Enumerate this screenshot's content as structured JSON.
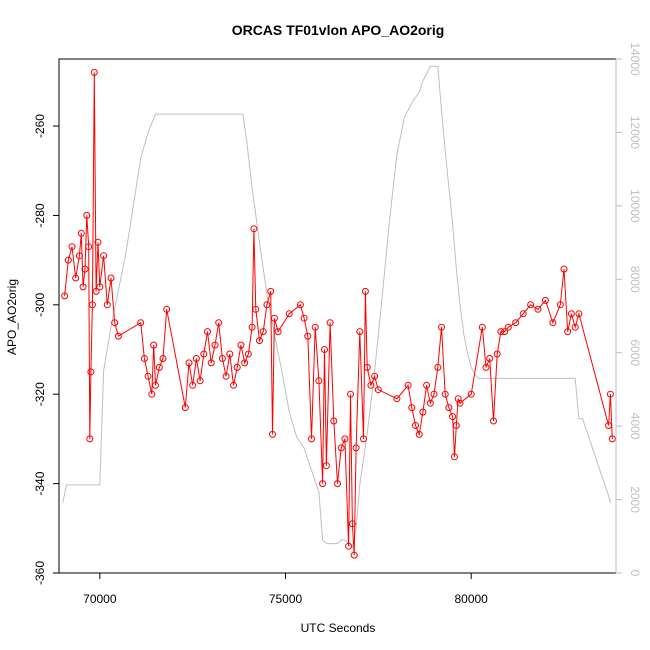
{
  "chart_data": {
    "type": "scatter",
    "title": "ORCAS TF01vlon APO_AO2orig",
    "xlabel": "UTC Seconds",
    "ylabel": "APO_AO2orig",
    "xlim": [
      68900,
      83900
    ],
    "ylim": [
      -360,
      -245
    ],
    "y2lim": [
      0,
      14000
    ],
    "x_ticks": [
      70000,
      75000,
      80000
    ],
    "x_tick_labels": [
      "70000",
      "75000",
      "80000"
    ],
    "y_ticks": [
      -360,
      -340,
      -320,
      -300,
      -280,
      -260
    ],
    "y_tick_labels": [
      "-360",
      "-340",
      "-320",
      "-300",
      "-280",
      "-260"
    ],
    "y2_ticks": [
      0,
      2000,
      4000,
      6000,
      8000,
      10000,
      12000,
      14000
    ],
    "y2_tick_labels": [
      "0",
      "2000",
      "4000",
      "6000",
      "8000",
      "10000",
      "12000",
      "14000"
    ],
    "colors": {
      "apo": "#ff0000",
      "altitude": "#bfbfbf"
    },
    "grid": false,
    "legend": "none",
    "series": [
      {
        "axis": "left",
        "style": "line+open-circles",
        "color": "#ff0000",
        "x": [
          69050,
          69150,
          69250,
          69350,
          69450,
          69500,
          69550,
          69600,
          69650,
          69700,
          69730,
          69760,
          69800,
          69850,
          69900,
          69950,
          70000,
          70100,
          70200,
          70300,
          70400,
          70500,
          71100,
          71200,
          71300,
          71400,
          71450,
          71500,
          71600,
          71700,
          71800,
          72300,
          72400,
          72500,
          72600,
          72700,
          72800,
          72900,
          73000,
          73100,
          73200,
          73300,
          73400,
          73500,
          73600,
          73700,
          73800,
          73900,
          74000,
          74100,
          74150,
          74200,
          74300,
          74400,
          74500,
          74600,
          74650,
          74700,
          74800,
          75100,
          75400,
          75500,
          75600,
          75700,
          75800,
          75900,
          76000,
          76050,
          76100,
          76200,
          76300,
          76400,
          76500,
          76600,
          76700,
          76750,
          76800,
          76850,
          76900,
          77000,
          77100,
          77150,
          77200,
          77300,
          77400,
          77500,
          78000,
          78300,
          78400,
          78500,
          78600,
          78700,
          78800,
          78900,
          79000,
          79100,
          79200,
          79300,
          79400,
          79500,
          79550,
          79600,
          79650,
          79700,
          80000,
          80300,
          80400,
          80500,
          80600,
          80700,
          80800,
          80900,
          81000,
          81200,
          81400,
          81600,
          81800,
          82000,
          82200,
          82400,
          82500,
          82600,
          82700,
          82800,
          82900,
          83700,
          83750,
          83800
        ],
        "y": [
          -298,
          -290,
          -287,
          -294,
          -289,
          -284,
          -296,
          -292,
          -280,
          -287,
          -330,
          -315,
          -300,
          -248,
          -297,
          -286,
          -296,
          -289,
          -300,
          -294,
          -304,
          -307,
          -304,
          -312,
          -316,
          -320,
          -309,
          -318,
          -314,
          -312,
          -301,
          -323,
          -313,
          -318,
          -312,
          -317,
          -311,
          -306,
          -313,
          -309,
          -304,
          -312,
          -316,
          -311,
          -318,
          -314,
          -309,
          -313,
          -311,
          -305,
          -283,
          -301,
          -308,
          -306,
          -300,
          -297,
          -329,
          -303,
          -306,
          -302,
          -300,
          -303,
          -307,
          -330,
          -305,
          -317,
          -340,
          -310,
          -336,
          -304,
          -326,
          -340,
          -332,
          -330,
          -354,
          -320,
          -349,
          -356,
          -332,
          -306,
          -330,
          -297,
          -314,
          -318,
          -316,
          -319,
          -321,
          -318,
          -323,
          -327,
          -329,
          -324,
          -318,
          -322,
          -320,
          -314,
          -305,
          -320,
          -323,
          -325,
          -334,
          -327,
          -321,
          -322,
          -320,
          -305,
          -314,
          -312,
          -326,
          -311,
          -306,
          -306,
          -305,
          -304,
          -302,
          -300,
          -301,
          -299,
          -304,
          -300,
          -292,
          -306,
          -302,
          -305,
          -302,
          -327,
          -320,
          -330
        ]
      },
      {
        "axis": "right",
        "style": "line",
        "color": "#bfbfbf",
        "x": [
          69000,
          69100,
          69200,
          69300,
          69400,
          69500,
          69600,
          69700,
          69800,
          69900,
          70000,
          70100,
          70300,
          70500,
          70700,
          70900,
          71100,
          71300,
          71500,
          72000,
          72500,
          73000,
          73500,
          73800,
          73850,
          73950,
          74100,
          74300,
          74500,
          74700,
          74900,
          75100,
          75300,
          75500,
          75700,
          75900,
          76000,
          76100,
          76200,
          76300,
          76400,
          76500,
          76600,
          76700,
          76800,
          76900,
          77000,
          77200,
          77400,
          77600,
          77800,
          78000,
          78200,
          78400,
          78600,
          78700,
          78800,
          78900,
          79000,
          79050,
          79100,
          79200,
          79300,
          79400,
          79500,
          79600,
          79700,
          79800,
          79900,
          80000,
          80100,
          80200,
          80300,
          80400,
          80500,
          80600,
          81000,
          81500,
          82000,
          82500,
          82800,
          82900,
          83000,
          83100,
          83200,
          83300,
          83400,
          83500,
          83600,
          83700,
          83750
        ],
        "y": [
          1900,
          2400,
          2400,
          2400,
          2400,
          2400,
          2400,
          2400,
          2400,
          2400,
          2400,
          5500,
          6700,
          7700,
          8700,
          10000,
          11300,
          12000,
          12500,
          12500,
          12500,
          12500,
          12500,
          12500,
          12500,
          11800,
          10500,
          9000,
          7600,
          6500,
          5500,
          4400,
          3700,
          3400,
          2800,
          2200,
          900,
          800,
          800,
          800,
          800,
          900,
          900,
          800,
          700,
          1200,
          2400,
          3800,
          5500,
          7500,
          9600,
          11400,
          12400,
          12800,
          13100,
          13400,
          13600,
          13800,
          13800,
          13800,
          13800,
          12600,
          11500,
          10500,
          9500,
          8300,
          7300,
          6500,
          6000,
          5600,
          5400,
          5300,
          5300,
          5300,
          5300,
          5300,
          5300,
          5300,
          5300,
          5300,
          5300,
          4200,
          4200,
          3900,
          3600,
          3300,
          3000,
          2700,
          2400,
          2100,
          1900
        ]
      }
    ]
  }
}
